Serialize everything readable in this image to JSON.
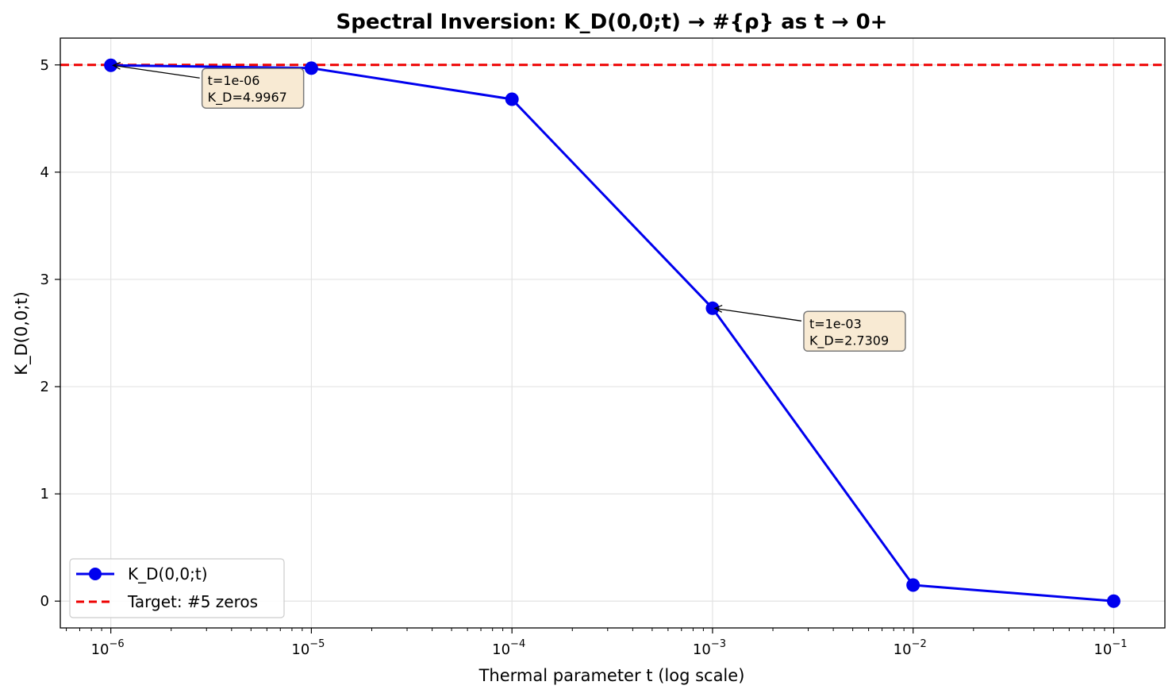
{
  "chart_data": {
    "type": "line",
    "title": "Spectral Inversion: K_D(0,0;t) → #{ρ} as t → 0+",
    "xlabel": "Thermal parameter t (log scale)",
    "ylabel": "K_D(0,0;t)",
    "xscale": "log",
    "xlim": [
      5.6e-07,
      0.18
    ],
    "ylim": [
      -0.25,
      5.25
    ],
    "grid": true,
    "legend_position": "lower-left",
    "x_ticks": [
      {
        "value": 1e-06,
        "base": "10",
        "exp": "−6"
      },
      {
        "value": 1e-05,
        "base": "10",
        "exp": "−5"
      },
      {
        "value": 0.0001,
        "base": "10",
        "exp": "−4"
      },
      {
        "value": 0.001,
        "base": "10",
        "exp": "−3"
      },
      {
        "value": 0.01,
        "base": "10",
        "exp": "−2"
      },
      {
        "value": 0.1,
        "base": "10",
        "exp": "−1"
      }
    ],
    "y_ticks": [
      0,
      1,
      2,
      3,
      4,
      5
    ],
    "series": [
      {
        "name": "K_D(0,0;t)",
        "color": "#0000ee",
        "x": [
          1e-06,
          1e-05,
          0.0001,
          0.001,
          0.01,
          0.1
        ],
        "y": [
          4.9967,
          4.97,
          4.68,
          2.7309,
          0.15,
          0.0
        ]
      }
    ],
    "reference_line": {
      "name": "Target: #5 zeros",
      "y": 5,
      "color": "#ee0000",
      "style": "dashed"
    },
    "annotations": [
      {
        "x": 1e-06,
        "y": 4.9967,
        "line1": "t=1e-06",
        "line2": "K_D=4.9967"
      },
      {
        "x": 0.001,
        "y": 2.7309,
        "line1": "t=1e-03",
        "line2": "K_D=2.7309"
      }
    ]
  }
}
